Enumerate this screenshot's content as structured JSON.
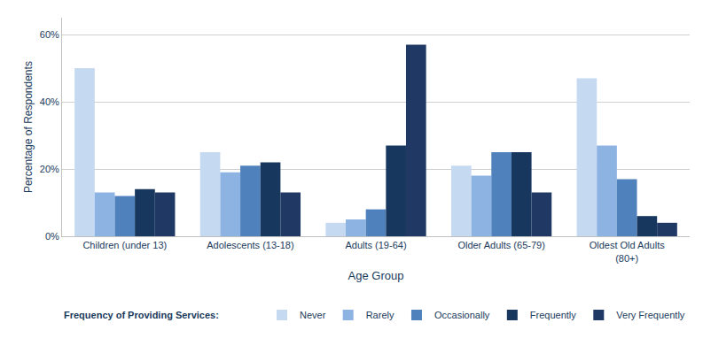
{
  "chart_data": {
    "type": "bar",
    "categories": [
      "Children (under 13)",
      "Adolescents (13-18)",
      "Adults (19-64)",
      "Older Adults (65-79)",
      "Oldest Old Adults\n(80+)"
    ],
    "series": [
      {
        "name": "Never",
        "color": "#c5d9f1",
        "values": [
          50,
          25,
          4,
          21,
          47
        ]
      },
      {
        "name": "Rarely",
        "color": "#8db3e2",
        "values": [
          13,
          19,
          5,
          18,
          27
        ]
      },
      {
        "name": "Occasionally",
        "color": "#4f81bd",
        "values": [
          12,
          21,
          8,
          25,
          17
        ]
      },
      {
        "name": "Frequently",
        "color": "#17375e",
        "values": [
          14,
          22,
          27,
          25,
          6
        ]
      },
      {
        "name": "Very Frequently",
        "color": "#1f3864",
        "values": [
          13,
          13,
          57,
          13,
          4
        ]
      }
    ],
    "xlabel": "Age Group",
    "ylabel": "Percentage of Respondents",
    "annotations": [
      "Frequency of Providing Services:"
    ],
    "ylim": [
      0,
      65
    ],
    "yticks": [
      {
        "value": 0,
        "label": "0%"
      },
      {
        "value": 20,
        "label": "20%"
      },
      {
        "value": 40,
        "label": "40%"
      },
      {
        "value": 60,
        "label": "60%"
      }
    ],
    "grid": true,
    "legend": "bottom"
  }
}
